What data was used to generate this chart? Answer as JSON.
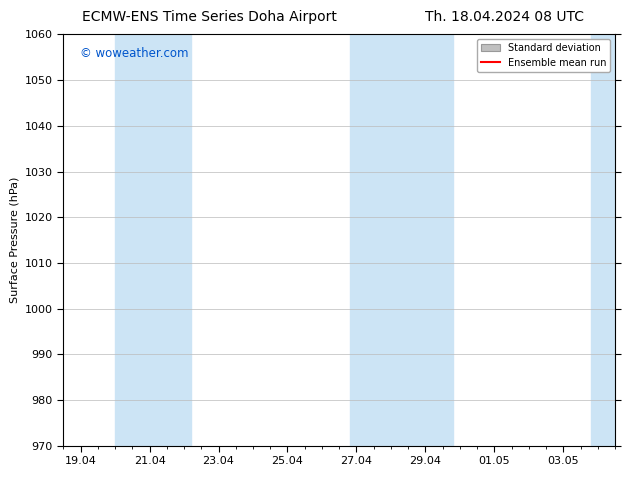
{
  "title_left": "ECMW-ENS Time Series Doha Airport",
  "title_right": "Th. 18.04.2024 08 UTC",
  "ylabel": "Surface Pressure (hPa)",
  "watermark": "© woweather.com",
  "watermark_color": "#0055cc",
  "ylim": [
    970,
    1060
  ],
  "yticks": [
    970,
    980,
    990,
    1000,
    1010,
    1020,
    1030,
    1040,
    1050,
    1060
  ],
  "xtick_labels": [
    "19.04",
    "21.04",
    "23.04",
    "25.04",
    "27.04",
    "29.04",
    "01.05",
    "03.05"
  ],
  "xtick_positions": [
    0,
    2,
    4,
    6,
    8,
    10,
    12,
    14
  ],
  "xlim": [
    -0.5,
    15.5
  ],
  "shaded_bands": [
    {
      "x_start": 1.0,
      "x_end": 3.2
    },
    {
      "x_start": 7.8,
      "x_end": 9.2
    },
    {
      "x_start": 9.2,
      "x_end": 10.8
    },
    {
      "x_start": 14.8,
      "x_end": 15.5
    }
  ],
  "shade_color": "#cce4f5",
  "background_color": "#ffffff",
  "grid_color": "#bbbbbb",
  "legend_std_color": "#c0c0c0",
  "legend_mean_color": "#ff0000",
  "title_fontsize": 10,
  "axis_fontsize": 8,
  "tick_fontsize": 8
}
